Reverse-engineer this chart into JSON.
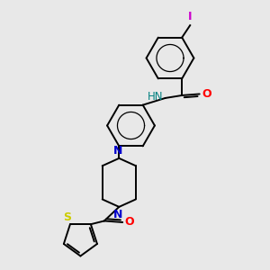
{
  "background_color": "#e8e8e8",
  "bond_color": "#000000",
  "N_color": "#0000cd",
  "O_color": "#ff0000",
  "S_color": "#cccc00",
  "I_color": "#cc00cc",
  "H_color": "#008080",
  "figsize": [
    3.0,
    3.0
  ],
  "dpi": 100,
  "xlim": [
    0,
    10
  ],
  "ylim": [
    0,
    10
  ]
}
